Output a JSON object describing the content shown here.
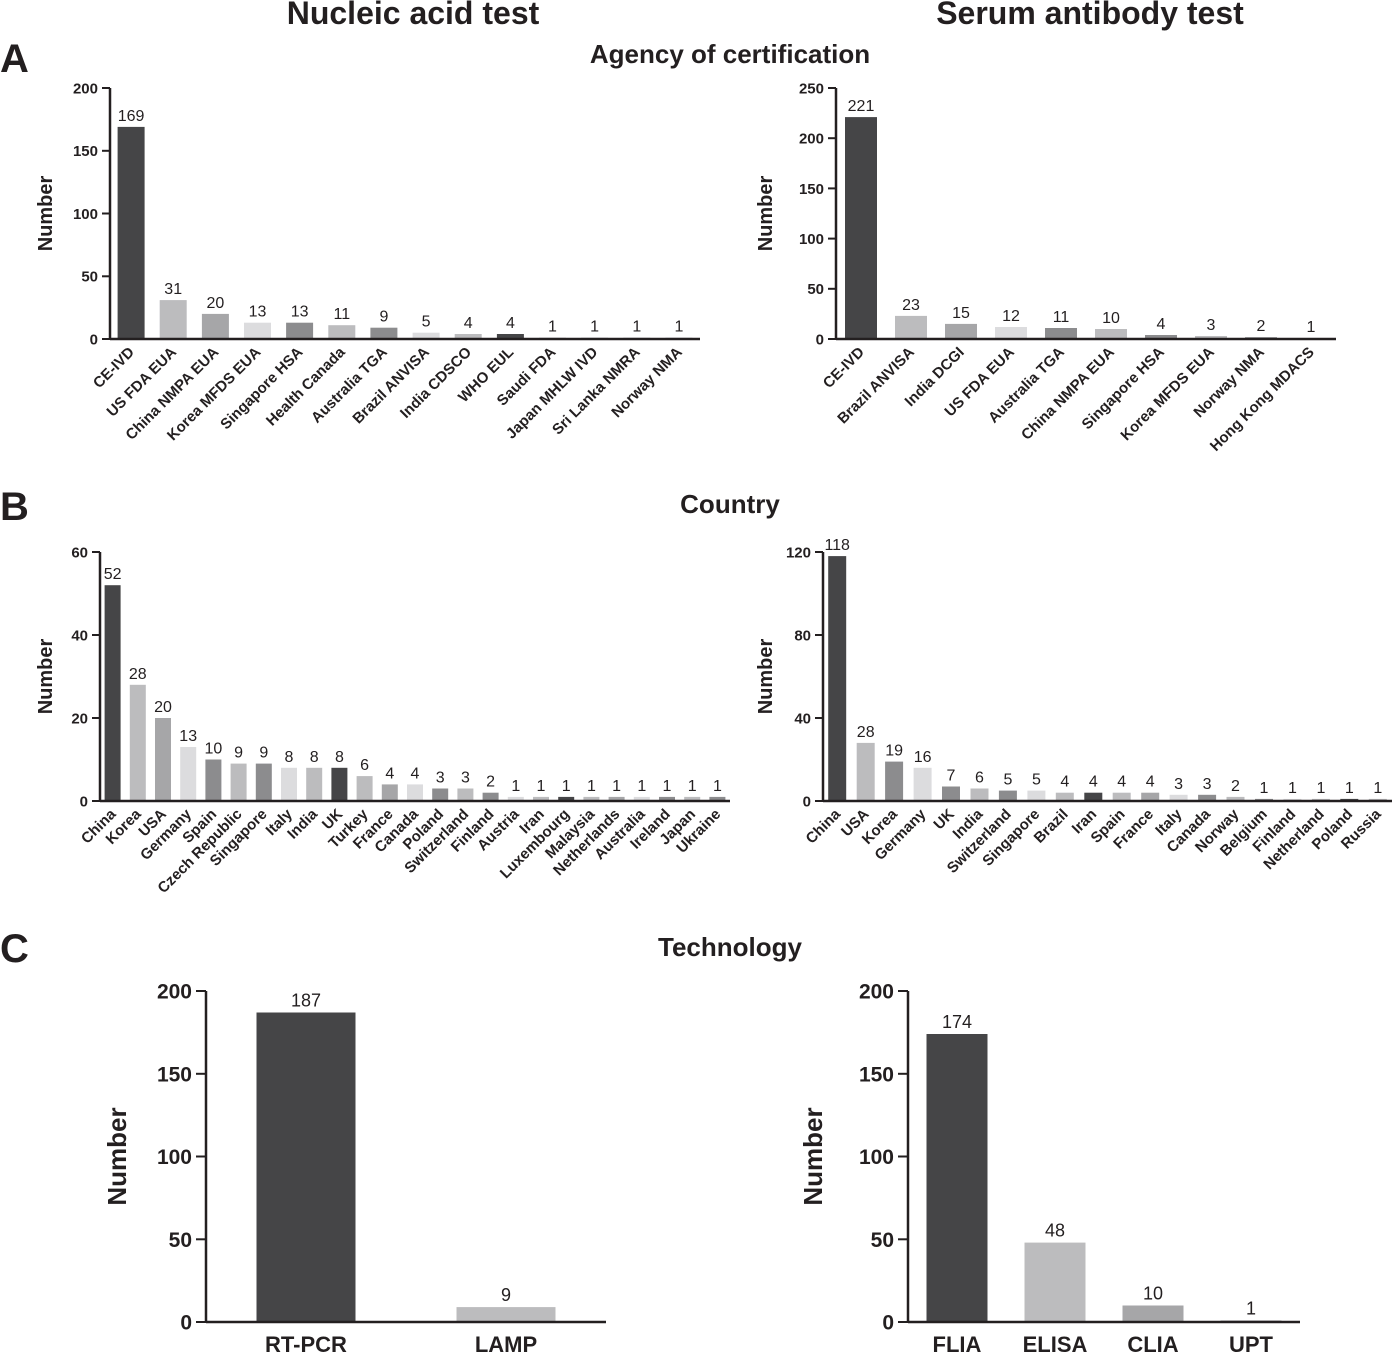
{
  "column_titles": [
    "Nucleic acid test",
    "Serum antibody test"
  ],
  "sections": [
    {
      "letter": "A",
      "title": "Agency of certification"
    },
    {
      "letter": "B",
      "title": "Country"
    },
    {
      "letter": "C",
      "title": "Technology"
    }
  ],
  "colors": {
    "dark": "#454547",
    "mid_dark": "#8c8c8e",
    "mid": "#a6a6a8",
    "light": "#bcbcbe",
    "very_light": "#dcdcde",
    "axis": "#231f20"
  },
  "chart_data": [
    {
      "id": "A-nucleic",
      "type": "bar",
      "title": "",
      "ylabel": "Number",
      "ylim": [
        0,
        200
      ],
      "yticks": [
        0,
        50,
        100,
        150,
        200
      ],
      "categories": [
        "CE-IVD",
        "US FDA EUA",
        "China NMPA EUA",
        "Korea MFDS EUA",
        "Singapore HSA",
        "Health Canada",
        "Australia TGA",
        "Brazil ANVISA",
        "India CDSCO",
        "WHO EUL",
        "Saudi FDA",
        "Japan MHLW IVD",
        "Sri Lanka NMRA",
        "Norway NMA"
      ],
      "values": [
        169,
        31,
        20,
        13,
        13,
        11,
        9,
        5,
        4,
        4,
        1,
        1,
        1,
        1
      ],
      "colors": [
        "#454547",
        "#bcbcbe",
        "#a6a6a8",
        "#dcdcde",
        "#8c8c8e",
        "#bcbcbe",
        "#8c8c8e",
        "#dcdcde",
        "#bcbcbe",
        "#454547",
        "#bcbcbe",
        "#bcbcbe",
        "#bcbcbe",
        "#bcbcbe"
      ]
    },
    {
      "id": "A-serum",
      "type": "bar",
      "title": "",
      "ylabel": "Number",
      "ylim": [
        0,
        250
      ],
      "yticks": [
        0,
        50,
        100,
        150,
        200,
        250
      ],
      "categories": [
        "CE-IVD",
        "Brazil ANVISA",
        "India DCGI",
        "US FDA EUA",
        "Australia TGA",
        "China NMPA EUA",
        "Singapore HSA",
        "Korea MFDS EUA",
        "Norway NMA",
        "Hong Kong MDACS"
      ],
      "values": [
        221,
        23,
        15,
        12,
        11,
        10,
        4,
        3,
        2,
        1
      ],
      "colors": [
        "#454547",
        "#bcbcbe",
        "#a6a6a8",
        "#dcdcde",
        "#8c8c8e",
        "#bcbcbe",
        "#8c8c8e",
        "#bcbcbe",
        "#a6a6a8",
        "#bcbcbe"
      ]
    },
    {
      "id": "B-nucleic",
      "type": "bar",
      "title": "",
      "ylabel": "Number",
      "ylim": [
        0,
        60
      ],
      "yticks": [
        0,
        20,
        40,
        60
      ],
      "categories": [
        "China",
        "Korea",
        "USA",
        "Germany",
        "Spain",
        "Czech Republic",
        "Singapore",
        "Italy",
        "India",
        "UK",
        "Turkey",
        "France",
        "Canada",
        "Poland",
        "Switzerland",
        "Finland",
        "Austria",
        "Iran",
        "Luxembourg",
        "Malaysia",
        "Netherlands",
        "Australia",
        "Ireland",
        "Japan",
        "Ukraine"
      ],
      "values": [
        52,
        28,
        20,
        13,
        10,
        9,
        9,
        8,
        8,
        8,
        6,
        4,
        4,
        3,
        3,
        2,
        1,
        1,
        1,
        1,
        1,
        1,
        1,
        1,
        1
      ],
      "colors": [
        "#454547",
        "#bcbcbe",
        "#a6a6a8",
        "#dcdcde",
        "#8c8c8e",
        "#bcbcbe",
        "#8c8c8e",
        "#dcdcde",
        "#bcbcbe",
        "#454547",
        "#bcbcbe",
        "#a6a6a8",
        "#dcdcde",
        "#8c8c8e",
        "#bcbcbe",
        "#8c8c8e",
        "#dcdcde",
        "#bcbcbe",
        "#454547",
        "#bcbcbe",
        "#a6a6a8",
        "#dcdcde",
        "#8c8c8e",
        "#bcbcbe",
        "#8c8c8e"
      ]
    },
    {
      "id": "B-serum",
      "type": "bar",
      "title": "",
      "ylabel": "Number",
      "ylim": [
        0,
        120
      ],
      "yticks": [
        0,
        40,
        80,
        120
      ],
      "categories": [
        "China",
        "USA",
        "Korea",
        "Germany",
        "UK",
        "India",
        "Switzerland",
        "Singapore",
        "Brazil",
        "Iran",
        "Spain",
        "France",
        "Italy",
        "Canada",
        "Norway",
        "Belgium",
        "Finland",
        "Netherland",
        "Poland",
        "Russia"
      ],
      "values": [
        118,
        28,
        19,
        16,
        7,
        6,
        5,
        5,
        4,
        4,
        4,
        4,
        3,
        3,
        2,
        1,
        1,
        1,
        1,
        1
      ],
      "colors": [
        "#454547",
        "#bcbcbe",
        "#8c8c8e",
        "#dcdcde",
        "#8c8c8e",
        "#bcbcbe",
        "#8c8c8e",
        "#dcdcde",
        "#bcbcbe",
        "#454547",
        "#bcbcbe",
        "#a6a6a8",
        "#dcdcde",
        "#8c8c8e",
        "#bcbcbe",
        "#8c8c8e",
        "#dcdcde",
        "#bcbcbe",
        "#454547",
        "#bcbcbe"
      ]
    },
    {
      "id": "C-nucleic",
      "type": "bar",
      "title": "",
      "ylabel": "Number",
      "ylim": [
        0,
        200
      ],
      "yticks": [
        0,
        50,
        100,
        150,
        200
      ],
      "categories": [
        "RT-PCR",
        "LAMP"
      ],
      "values": [
        187,
        9
      ],
      "colors": [
        "#454547",
        "#bcbcbe"
      ]
    },
    {
      "id": "C-serum",
      "type": "bar",
      "title": "",
      "ylabel": "Number",
      "ylim": [
        0,
        200
      ],
      "yticks": [
        0,
        50,
        100,
        150,
        200
      ],
      "categories": [
        "FLIA",
        "ELISA",
        "CLIA",
        "UPT"
      ],
      "values": [
        174,
        48,
        10,
        1
      ],
      "colors": [
        "#454547",
        "#bcbcbe",
        "#a6a6a8",
        "#bcbcbe"
      ]
    }
  ]
}
